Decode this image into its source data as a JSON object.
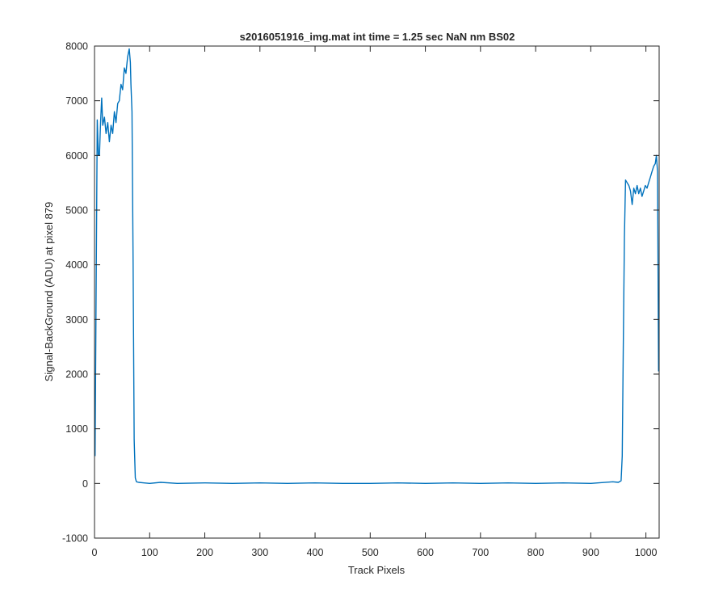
{
  "chart_data": {
    "type": "line",
    "title": "s2016051916_img.mat int time = 1.25 sec  NaN nm BS02",
    "xlabel": "Track Pixels",
    "ylabel": "Signal-BackGround (ADU) at pixel 879",
    "xlim": [
      0,
      1024
    ],
    "ylim": [
      -1000,
      8000
    ],
    "xticks": [
      0,
      100,
      200,
      300,
      400,
      500,
      600,
      700,
      800,
      900,
      1000
    ],
    "yticks": [
      -1000,
      0,
      1000,
      2000,
      3000,
      4000,
      5000,
      6000,
      7000,
      8000
    ],
    "grid": false,
    "series": [
      {
        "color": "#0072BD",
        "x": [
          1,
          3,
          5,
          7,
          9,
          11,
          13,
          15,
          18,
          21,
          24,
          27,
          30,
          33,
          36,
          39,
          42,
          45,
          48,
          51,
          54,
          57,
          60,
          63,
          65,
          66,
          68,
          70,
          72,
          74,
          76,
          80,
          90,
          100,
          120,
          150,
          200,
          250,
          300,
          350,
          400,
          450,
          500,
          550,
          600,
          650,
          700,
          750,
          800,
          850,
          900,
          940,
          950,
          955,
          957,
          959,
          961,
          963,
          966,
          969,
          972,
          975,
          978,
          981,
          984,
          987,
          990,
          993,
          996,
          999,
          1002,
          1005,
          1008,
          1011,
          1014,
          1017,
          1019,
          1021,
          1022,
          1023
        ],
        "y": [
          500,
          3500,
          6650,
          6000,
          6000,
          6600,
          7050,
          6550,
          6700,
          6400,
          6600,
          6250,
          6550,
          6400,
          6800,
          6600,
          6950,
          7000,
          7300,
          7200,
          7600,
          7500,
          7800,
          7950,
          7700,
          7300,
          6800,
          4000,
          800,
          100,
          30,
          20,
          10,
          0,
          20,
          0,
          10,
          0,
          10,
          0,
          10,
          0,
          0,
          10,
          0,
          10,
          0,
          10,
          0,
          10,
          0,
          30,
          20,
          50,
          500,
          2500,
          4500,
          5550,
          5500,
          5450,
          5350,
          5100,
          5400,
          5300,
          5450,
          5300,
          5400,
          5250,
          5350,
          5450,
          5400,
          5500,
          5600,
          5700,
          5800,
          5850,
          6000,
          5700,
          4000,
          2050
        ]
      }
    ]
  }
}
